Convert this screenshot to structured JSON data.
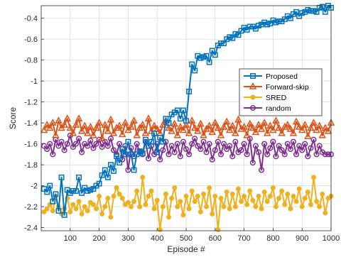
{
  "chart_data": {
    "type": "line",
    "title": "",
    "xlabel": "Episode #",
    "ylabel": "Score",
    "xlim": [
      0,
      1000
    ],
    "ylim": [
      -2.43,
      -0.28
    ],
    "xticks": [
      100,
      200,
      300,
      400,
      500,
      600,
      700,
      800,
      900,
      1000
    ],
    "xtick_labels": [
      "100",
      "200",
      "300",
      "400",
      "500",
      "600",
      "700",
      "800",
      "900",
      "1000"
    ],
    "yticks": [
      -2.4,
      -2.2,
      -2,
      -1.8,
      -1.6,
      -1.4,
      -1.2,
      -1,
      -0.8,
      -0.6,
      -0.4
    ],
    "ytick_labels": [
      "-2.4",
      "-2.2",
      "-2",
      "-1.8",
      "-1.6",
      "-1.4",
      "-1.2",
      "-1",
      "-0.8",
      "-0.6",
      "-0.4"
    ],
    "grid": true,
    "legend_position": "right",
    "series": [
      {
        "name": "Proposed",
        "color": "#0072BD",
        "marker": "square",
        "x": [
          10,
          20,
          30,
          40,
          50,
          60,
          70,
          80,
          90,
          100,
          110,
          120,
          130,
          140,
          150,
          160,
          170,
          180,
          190,
          200,
          210,
          220,
          230,
          240,
          250,
          260,
          270,
          280,
          290,
          300,
          310,
          320,
          330,
          340,
          350,
          360,
          370,
          380,
          390,
          400,
          410,
          420,
          430,
          440,
          450,
          460,
          470,
          480,
          490,
          500,
          510,
          520,
          530,
          540,
          550,
          560,
          570,
          580,
          590,
          600,
          610,
          620,
          630,
          640,
          650,
          660,
          670,
          680,
          690,
          700,
          710,
          720,
          730,
          740,
          750,
          760,
          770,
          780,
          790,
          800,
          810,
          820,
          830,
          840,
          850,
          860,
          870,
          880,
          890,
          900,
          910,
          920,
          930,
          940,
          950,
          960,
          970,
          980,
          990,
          1000
        ],
        "y": [
          -2.03,
          -2.06,
          -2.0,
          -2.15,
          -2.08,
          -2.24,
          -1.92,
          -2.28,
          -2.04,
          -2.07,
          -2.05,
          -2.05,
          -1.92,
          -2.07,
          -2.02,
          -2.05,
          -2.04,
          -2.03,
          -2.0,
          -1.98,
          -1.9,
          -1.85,
          -1.92,
          -1.8,
          -1.86,
          -1.72,
          -1.78,
          -1.65,
          -1.7,
          -1.58,
          -1.7,
          -1.85,
          -1.7,
          -1.67,
          -1.69,
          -1.56,
          -1.62,
          -1.58,
          -1.5,
          -1.68,
          -1.54,
          -1.58,
          -1.36,
          -1.4,
          -1.32,
          -1.3,
          -1.28,
          -1.36,
          -1.28,
          -1.38,
          -1.1,
          -0.84,
          -0.9,
          -0.76,
          -0.78,
          -0.77,
          -0.76,
          -0.82,
          -0.71,
          -0.75,
          -0.66,
          -0.64,
          -0.64,
          -0.6,
          -0.58,
          -0.59,
          -0.55,
          -0.56,
          -0.52,
          -0.49,
          -0.51,
          -0.48,
          -0.48,
          -0.5,
          -0.47,
          -0.46,
          -0.44,
          -0.46,
          -0.45,
          -0.42,
          -0.44,
          -0.43,
          -0.43,
          -0.41,
          -0.38,
          -0.4,
          -0.36,
          -0.34,
          -0.38,
          -0.35,
          -0.34,
          -0.32,
          -0.33,
          -0.33,
          -0.34,
          -0.3,
          -0.29,
          -0.34,
          -0.28,
          -0.3
        ]
      },
      {
        "name": "Forward-skip",
        "color": "#D95319",
        "marker": "triangle",
        "x": [
          10,
          20,
          30,
          40,
          50,
          60,
          70,
          80,
          90,
          100,
          110,
          120,
          130,
          140,
          150,
          160,
          170,
          180,
          190,
          200,
          210,
          220,
          230,
          240,
          250,
          260,
          270,
          280,
          290,
          300,
          310,
          320,
          330,
          340,
          350,
          360,
          370,
          380,
          390,
          400,
          410,
          420,
          430,
          440,
          450,
          460,
          470,
          480,
          490,
          500,
          510,
          520,
          530,
          540,
          550,
          560,
          570,
          580,
          590,
          600,
          610,
          620,
          630,
          640,
          650,
          660,
          670,
          680,
          690,
          700,
          710,
          720,
          730,
          740,
          750,
          760,
          770,
          780,
          790,
          800,
          810,
          820,
          830,
          840,
          850,
          860,
          870,
          880,
          890,
          900,
          910,
          920,
          930,
          940,
          950,
          960,
          970,
          980,
          990,
          1000
        ],
        "y": [
          -1.47,
          -1.42,
          -1.45,
          -1.4,
          -1.52,
          -1.38,
          -1.45,
          -1.42,
          -1.36,
          -1.45,
          -1.5,
          -1.42,
          -1.36,
          -1.48,
          -1.43,
          -1.5,
          -1.44,
          -1.52,
          -1.45,
          -1.4,
          -1.55,
          -1.42,
          -1.48,
          -1.37,
          -1.5,
          -1.45,
          -1.43,
          -1.51,
          -1.4,
          -1.47,
          -1.44,
          -1.38,
          -1.52,
          -1.45,
          -1.42,
          -1.5,
          -1.36,
          -1.48,
          -1.43,
          -1.46,
          -1.5,
          -1.42,
          -1.38,
          -1.45,
          -1.48,
          -1.41,
          -1.52,
          -1.44,
          -1.47,
          -1.42,
          -1.5,
          -1.38,
          -1.45,
          -1.48,
          -1.41,
          -1.52,
          -1.46,
          -1.43,
          -1.49,
          -1.4,
          -1.45,
          -1.52,
          -1.44,
          -1.39,
          -1.47,
          -1.43,
          -1.5,
          -1.37,
          -1.46,
          -1.44,
          -1.52,
          -1.41,
          -1.45,
          -1.49,
          -1.42,
          -1.46,
          -1.4,
          -1.5,
          -1.43,
          -1.47,
          -1.38,
          -1.45,
          -1.5,
          -1.44,
          -1.42,
          -1.46,
          -1.5,
          -1.39,
          -1.44,
          -1.47,
          -1.42,
          -1.53,
          -1.45,
          -1.4,
          -1.47,
          -1.43,
          -1.52,
          -1.45,
          -1.48,
          -1.4
        ]
      },
      {
        "name": "SRED",
        "color": "#EDB120",
        "marker": "circle",
        "x": [
          10,
          20,
          30,
          40,
          50,
          60,
          70,
          80,
          90,
          100,
          110,
          120,
          130,
          140,
          150,
          160,
          170,
          180,
          190,
          200,
          210,
          220,
          230,
          240,
          250,
          260,
          270,
          280,
          290,
          300,
          310,
          320,
          330,
          340,
          350,
          360,
          370,
          380,
          390,
          400,
          410,
          420,
          430,
          440,
          450,
          460,
          470,
          480,
          490,
          500,
          510,
          520,
          530,
          540,
          550,
          560,
          570,
          580,
          590,
          600,
          610,
          620,
          630,
          640,
          650,
          660,
          670,
          680,
          690,
          700,
          710,
          720,
          730,
          740,
          750,
          760,
          770,
          780,
          790,
          800,
          810,
          820,
          830,
          840,
          850,
          860,
          870,
          880,
          890,
          900,
          910,
          920,
          930,
          940,
          950,
          960,
          970,
          980,
          990,
          1000
        ],
        "y": [
          -2.25,
          -2.22,
          -2.18,
          -2.24,
          -2.1,
          -2.2,
          -2.27,
          -2.22,
          -2.12,
          -2.25,
          -2.18,
          -2.22,
          -2.15,
          -2.27,
          -2.2,
          -2.24,
          -2.16,
          -2.18,
          -2.22,
          -2.1,
          -2.27,
          -2.2,
          -2.12,
          -2.3,
          -2.1,
          -2.02,
          -2.08,
          -2.12,
          -2.18,
          -2.16,
          -2.2,
          -2.15,
          -2.05,
          -2.2,
          -1.92,
          -2.18,
          -2.1,
          -2.05,
          -2.22,
          -2.14,
          -2.42,
          -2.2,
          -2.08,
          -2.3,
          -2.12,
          -2.02,
          -2.2,
          -2.15,
          -2.28,
          -2.1,
          -2.22,
          -2.05,
          -2.15,
          -2.1,
          -2.25,
          -2.08,
          -2.2,
          -2.02,
          -2.27,
          -2.1,
          -2.42,
          -2.12,
          -2.2,
          -2.06,
          -2.22,
          -2.08,
          -2.2,
          -2.03,
          -2.15,
          -2.1,
          -2.18,
          -2.05,
          -2.14,
          -2.2,
          -2.1,
          -2.22,
          -2.06,
          -2.15,
          -2.1,
          -2.02,
          -2.2,
          -2.12,
          -2.05,
          -2.18,
          -2.08,
          -2.22,
          -2.1,
          -2.15,
          -2.03,
          -2.2,
          -2.12,
          -2.06,
          -2.18,
          -1.92,
          -2.15,
          -2.2,
          -2.08,
          -2.26,
          -2.12,
          -2.1
        ]
      },
      {
        "name": "random",
        "color": "#7E2F8E",
        "marker": "circle",
        "x": [
          10,
          20,
          30,
          40,
          50,
          60,
          70,
          80,
          90,
          100,
          110,
          120,
          130,
          140,
          150,
          160,
          170,
          180,
          190,
          200,
          210,
          220,
          230,
          240,
          250,
          260,
          270,
          280,
          290,
          300,
          310,
          320,
          330,
          340,
          350,
          360,
          370,
          380,
          390,
          400,
          410,
          420,
          430,
          440,
          450,
          460,
          470,
          480,
          490,
          500,
          510,
          520,
          530,
          540,
          550,
          560,
          570,
          580,
          590,
          600,
          610,
          620,
          630,
          640,
          650,
          660,
          670,
          680,
          690,
          700,
          710,
          720,
          730,
          740,
          750,
          760,
          770,
          780,
          790,
          800,
          810,
          820,
          830,
          840,
          850,
          860,
          870,
          880,
          890,
          900,
          910,
          920,
          930,
          940,
          950,
          960,
          970,
          980,
          990,
          1000
        ],
        "y": [
          -1.62,
          -1.65,
          -1.6,
          -1.7,
          -1.56,
          -1.62,
          -1.58,
          -1.66,
          -1.6,
          -1.52,
          -1.63,
          -1.6,
          -1.55,
          -1.68,
          -1.6,
          -1.62,
          -1.57,
          -1.64,
          -1.6,
          -1.56,
          -1.63,
          -1.58,
          -1.62,
          -1.55,
          -1.66,
          -1.7,
          -1.6,
          -1.75,
          -1.62,
          -1.85,
          -1.64,
          -1.72,
          -1.6,
          -1.68,
          -1.7,
          -1.58,
          -1.74,
          -1.62,
          -1.7,
          -1.6,
          -1.75,
          -1.66,
          -1.58,
          -1.7,
          -1.62,
          -1.68,
          -1.6,
          -1.72,
          -1.58,
          -1.65,
          -1.7,
          -1.6,
          -1.55,
          -1.62,
          -1.65,
          -1.58,
          -1.68,
          -1.6,
          -1.75,
          -1.66,
          -1.58,
          -1.7,
          -1.6,
          -1.65,
          -1.62,
          -1.72,
          -1.58,
          -1.68,
          -1.66,
          -1.6,
          -1.7,
          -1.55,
          -1.78,
          -1.62,
          -1.68,
          -1.85,
          -1.6,
          -1.7,
          -1.64,
          -1.58,
          -1.72,
          -1.62,
          -1.66,
          -1.7,
          -1.6,
          -1.65,
          -1.58,
          -1.7,
          -1.62,
          -1.66,
          -1.6,
          -1.72,
          -1.64,
          -1.56,
          -1.7,
          -1.62,
          -1.68,
          -1.7,
          -1.7,
          -1.7
        ]
      }
    ]
  }
}
